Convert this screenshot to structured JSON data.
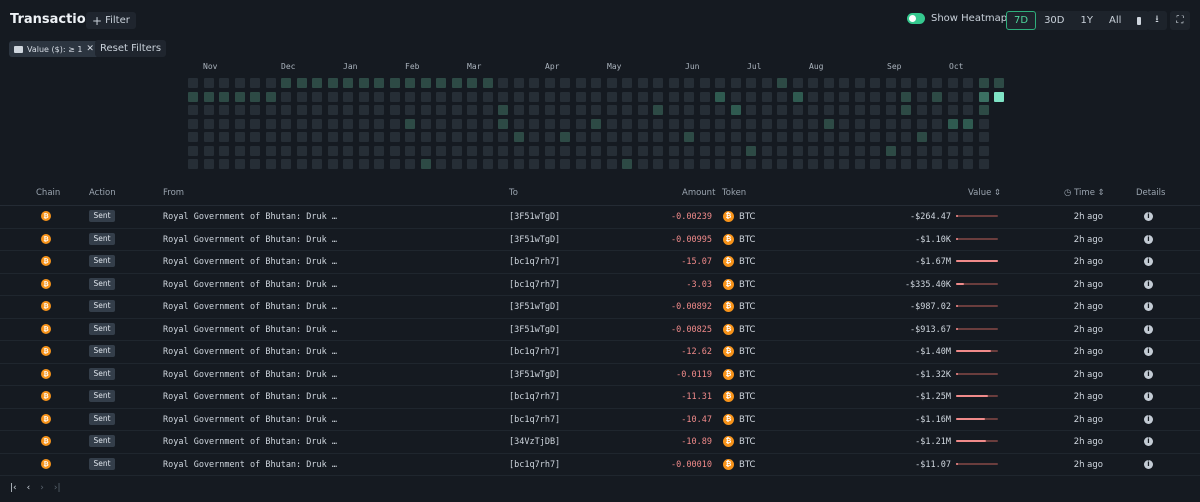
{
  "header": {
    "title": "Transactions",
    "filter_label": "Filter",
    "show_heatmap_label": "Show Heatmap",
    "show_heatmap_on": true,
    "ranges": [
      "7D",
      "30D",
      "1Y",
      "All"
    ],
    "active_range": "7D",
    "icons": {
      "calendar": "calendar-icon",
      "download": "download-icon",
      "fullscreen": "fullscreen-icon"
    }
  },
  "filters": {
    "chip_label": "Value ($): ≥ 1",
    "reset_label": "Reset Filters"
  },
  "heatmap": {
    "months": [
      "Nov",
      "Dec",
      "Jan",
      "Feb",
      "Mar",
      "Apr",
      "May",
      "Jun",
      "Jul",
      "Aug",
      "Sep",
      "Oct"
    ],
    "colors": {
      "empty": "#262e36",
      "low": "#2d4a45",
      "mid": "#2f5a50",
      "high": "#3b6f62",
      "top": "#7fe3c5"
    }
  },
  "table": {
    "columns": {
      "chain": "Chain",
      "action": "Action",
      "from": "From",
      "to": "To",
      "amount": "Amount",
      "token": "Token",
      "value": "Value ⇕",
      "time": "Time ⇕",
      "details": "Details"
    },
    "rows": [
      {
        "action": "Sent",
        "from": "Royal Government of Bhutan: Druk …",
        "to": "[3F51wTgD]",
        "amount": "-0.00239",
        "token": "BTC",
        "value": "-$264.47",
        "bar": 0.0,
        "time": "2h ago"
      },
      {
        "action": "Sent",
        "from": "Royal Government of Bhutan: Druk …",
        "to": "[3F51wTgD]",
        "amount": "-0.00995",
        "token": "BTC",
        "value": "-$1.10K",
        "bar": 0.0,
        "time": "2h ago"
      },
      {
        "action": "Sent",
        "from": "Royal Government of Bhutan: Druk …",
        "to": "[bc1q7rh7]",
        "amount": "-15.07",
        "token": "BTC",
        "value": "-$1.67M",
        "bar": 1.0,
        "time": "2h ago"
      },
      {
        "action": "Sent",
        "from": "Royal Government of Bhutan: Druk …",
        "to": "[bc1q7rh7]",
        "amount": "-3.03",
        "token": "BTC",
        "value": "-$335.40K",
        "bar": 0.2,
        "time": "2h ago"
      },
      {
        "action": "Sent",
        "from": "Royal Government of Bhutan: Druk …",
        "to": "[3F51wTgD]",
        "amount": "-0.00892",
        "token": "BTC",
        "value": "-$987.02",
        "bar": 0.0,
        "time": "2h ago"
      },
      {
        "action": "Sent",
        "from": "Royal Government of Bhutan: Druk …",
        "to": "[3F51wTgD]",
        "amount": "-0.00825",
        "token": "BTC",
        "value": "-$913.67",
        "bar": 0.0,
        "time": "2h ago"
      },
      {
        "action": "Sent",
        "from": "Royal Government of Bhutan: Druk …",
        "to": "[bc1q7rh7]",
        "amount": "-12.62",
        "token": "BTC",
        "value": "-$1.40M",
        "bar": 0.84,
        "time": "2h ago"
      },
      {
        "action": "Sent",
        "from": "Royal Government of Bhutan: Druk …",
        "to": "[3F51wTgD]",
        "amount": "-0.0119",
        "token": "BTC",
        "value": "-$1.32K",
        "bar": 0.0,
        "time": "2h ago"
      },
      {
        "action": "Sent",
        "from": "Royal Government of Bhutan: Druk …",
        "to": "[bc1q7rh7]",
        "amount": "-11.31",
        "token": "BTC",
        "value": "-$1.25M",
        "bar": 0.75,
        "time": "2h ago"
      },
      {
        "action": "Sent",
        "from": "Royal Government of Bhutan: Druk …",
        "to": "[bc1q7rh7]",
        "amount": "-10.47",
        "token": "BTC",
        "value": "-$1.16M",
        "bar": 0.69,
        "time": "2h ago"
      },
      {
        "action": "Sent",
        "from": "Royal Government of Bhutan: Druk …",
        "to": "[34VzTjDB]",
        "amount": "-10.89",
        "token": "BTC",
        "value": "-$1.21M",
        "bar": 0.72,
        "time": "2h ago"
      },
      {
        "action": "Sent",
        "from": "Royal Government of Bhutan: Druk …",
        "to": "[bc1q7rh7]",
        "amount": "-0.00010",
        "token": "BTC",
        "value": "-$11.07",
        "bar": 0.0,
        "time": "2h ago"
      }
    ]
  },
  "pagination": {
    "first": "|‹",
    "prev": "‹",
    "next": "›",
    "last": "›|"
  },
  "colors": {
    "accent": "#35c98f",
    "negative": "#f08a8a",
    "bitcoin": "#f7931a"
  }
}
